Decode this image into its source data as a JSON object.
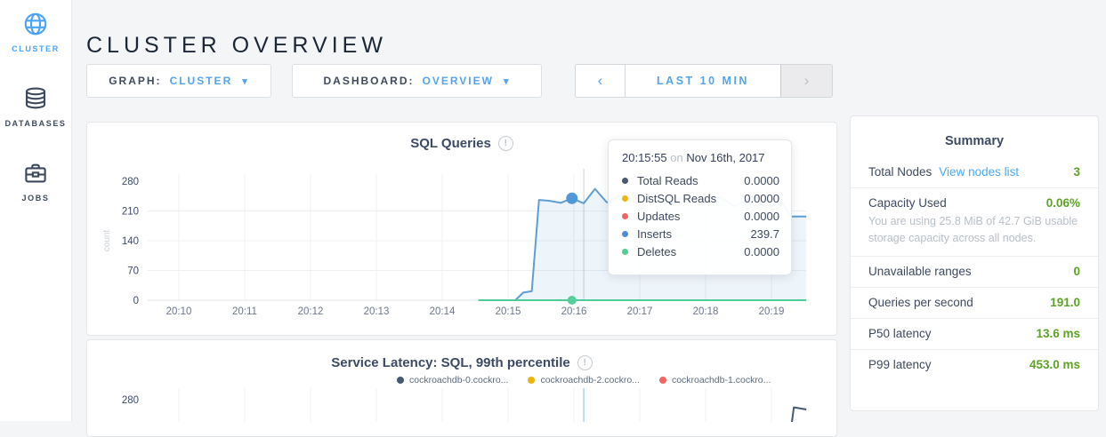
{
  "page": {
    "title": "CLUSTER OVERVIEW"
  },
  "icons": {
    "info": "!",
    "caret": "▾",
    "chev_left": "‹",
    "chev_right": "›"
  },
  "sidebar": {
    "items": [
      {
        "label": "CLUSTER",
        "icon": "globe-icon",
        "active": true
      },
      {
        "label": "DATABASES",
        "icon": "database-icon",
        "active": false
      },
      {
        "label": "JOBS",
        "icon": "briefcase-icon",
        "active": false
      }
    ]
  },
  "controls": {
    "graph": {
      "label": "GRAPH:",
      "value": "CLUSTER"
    },
    "dashboard": {
      "label": "DASHBOARD:",
      "value": "OVERVIEW"
    },
    "time": {
      "label": "LAST 10 MIN"
    }
  },
  "tooltip": {
    "time": "20:15:55",
    "conj": "on",
    "date": "Nov 16th, 2017",
    "rows": [
      {
        "label": "Total Reads",
        "value": "0.0000",
        "color": "#475872"
      },
      {
        "label": "DistSQL Reads",
        "value": "0.0000",
        "color": "#eeb211"
      },
      {
        "label": "Updates",
        "value": "0.0000",
        "color": "#f06561"
      },
      {
        "label": "Inserts",
        "value": "239.7",
        "color": "#4a90d9"
      },
      {
        "label": "Deletes",
        "value": "0.0000",
        "color": "#50ce97"
      }
    ]
  },
  "chart_data": [
    {
      "type": "line",
      "title": "SQL Queries",
      "ylabel": "count",
      "yticks": [
        0,
        70,
        140,
        210,
        280
      ],
      "ylim": [
        0,
        293
      ],
      "xticks": [
        {
          "minute": 10,
          "label": "20:10"
        },
        {
          "minute": 11,
          "label": "20:11"
        },
        {
          "minute": 12,
          "label": "20:12"
        },
        {
          "minute": 13,
          "label": "20:13"
        },
        {
          "minute": 14,
          "label": "20:14"
        },
        {
          "minute": 15,
          "label": "20:15"
        },
        {
          "minute": 16,
          "label": "20:16"
        },
        {
          "minute": 17,
          "label": "20:17"
        },
        {
          "minute": 18,
          "label": "20:18"
        },
        {
          "minute": 19,
          "label": "20:19"
        }
      ],
      "crosshair": {
        "minute": 16.15,
        "color": "#cdd1d6"
      },
      "series": [
        {
          "name": "Inserts",
          "color": "#5e9fd3",
          "fill": "rgba(110,165,215,0.12)",
          "points": [
            [
              14.6,
              0
            ],
            [
              15.11,
              0
            ],
            [
              15.23,
              18
            ],
            [
              15.36,
              21
            ],
            [
              15.47,
              236
            ],
            [
              15.62,
              234
            ],
            [
              15.8,
              229
            ],
            [
              15.97,
              239.7
            ],
            [
              16.15,
              228
            ],
            [
              16.32,
              262
            ],
            [
              16.5,
              230
            ],
            [
              16.72,
              247
            ],
            [
              16.95,
              228
            ],
            [
              17.2,
              251
            ],
            [
              17.45,
              227
            ],
            [
              17.68,
              245
            ],
            [
              17.95,
              222
            ],
            [
              18.2,
              243
            ],
            [
              18.45,
              221
            ],
            [
              18.68,
              240
            ],
            [
              18.95,
              218
            ],
            [
              19.15,
              232
            ],
            [
              19.3,
              197
            ],
            [
              19.53,
              197
            ]
          ]
        },
        {
          "name": "Deletes",
          "color": "#4ecb96",
          "fill": null,
          "points": [
            [
              14.55,
              0
            ],
            [
              19.53,
              0
            ]
          ]
        }
      ],
      "markers": [
        {
          "minute": 15.97,
          "value": 239.7,
          "r": 6.5,
          "color": "#4f97d8"
        },
        {
          "minute": 15.97,
          "value": 0,
          "r": 5,
          "color": "#55cf99"
        }
      ]
    },
    {
      "type": "line",
      "title": "Service Latency: SQL, 99th percentile",
      "yticks": [
        280
      ],
      "ylim": [
        0,
        293
      ],
      "xtick_minutes": [
        10,
        11,
        12,
        13,
        14,
        15,
        16,
        17,
        18,
        19
      ],
      "crosshair": {
        "minute": 16.15,
        "color": "#a9d5f3"
      },
      "legend": [
        {
          "label": "cockroachdb-0.cockro...",
          "color": "#475872"
        },
        {
          "label": "cockroachdb-2.cockro...",
          "color": "#eeb211"
        },
        {
          "label": "cockroachdb-1.cockro...",
          "color": "#f06561"
        }
      ],
      "series": [
        {
          "name": "cockroachdb-0",
          "color": "#475872",
          "fill": null,
          "points": [
            [
              19.29,
              204
            ],
            [
              19.34,
              262
            ],
            [
              19.53,
              257
            ]
          ]
        }
      ]
    }
  ],
  "summary": {
    "title": "Summary",
    "rows": [
      {
        "label": "Total Nodes",
        "link": "View nodes list",
        "value": "3"
      },
      {
        "label": "Capacity Used",
        "value": "0.06%",
        "caption": "You are using 25.8 MiB of 42.7 GiB usable storage capacity across all nodes."
      },
      {
        "label": "Unavailable ranges",
        "value": "0"
      },
      {
        "label": "Queries per second",
        "value": "191.0"
      },
      {
        "label": "P50 latency",
        "value": "13.6 ms"
      },
      {
        "label": "P99 latency",
        "value": "453.0 ms"
      }
    ]
  }
}
